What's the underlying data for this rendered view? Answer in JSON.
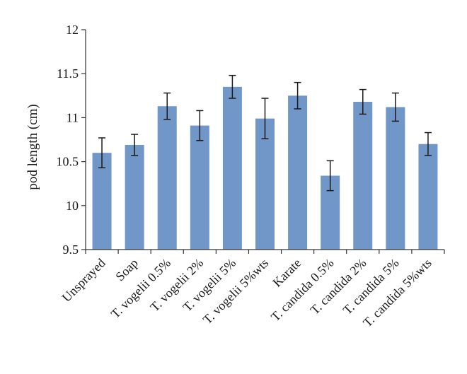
{
  "chart_data": {
    "type": "bar",
    "title": "",
    "xlabel": "",
    "ylabel": "pod length (cm)",
    "ylim": [
      9.5,
      12
    ],
    "yticks": [
      9.5,
      10,
      10.5,
      11,
      11.5,
      12
    ],
    "ytick_labels": [
      "9.5",
      "10",
      "10.5",
      "11",
      "11.5",
      "12"
    ],
    "grid": false,
    "bar_color": "#7196c8",
    "categories": [
      "Unsprayed",
      "Soap",
      "T. vogelii 0.5%",
      "T. vogelii 2%",
      "T. vogelii 5%",
      "T. vogelii 5%wts",
      "Karate",
      "T. candida 0.5%",
      "T. candida 2%",
      "T. candida 5%",
      "T. candida 5%wts"
    ],
    "values": [
      10.6,
      10.69,
      11.13,
      10.91,
      11.35,
      10.99,
      11.25,
      10.34,
      11.18,
      11.12,
      10.7
    ],
    "errors": [
      0.17,
      0.12,
      0.15,
      0.17,
      0.13,
      0.23,
      0.15,
      0.17,
      0.14,
      0.16,
      0.13
    ]
  }
}
